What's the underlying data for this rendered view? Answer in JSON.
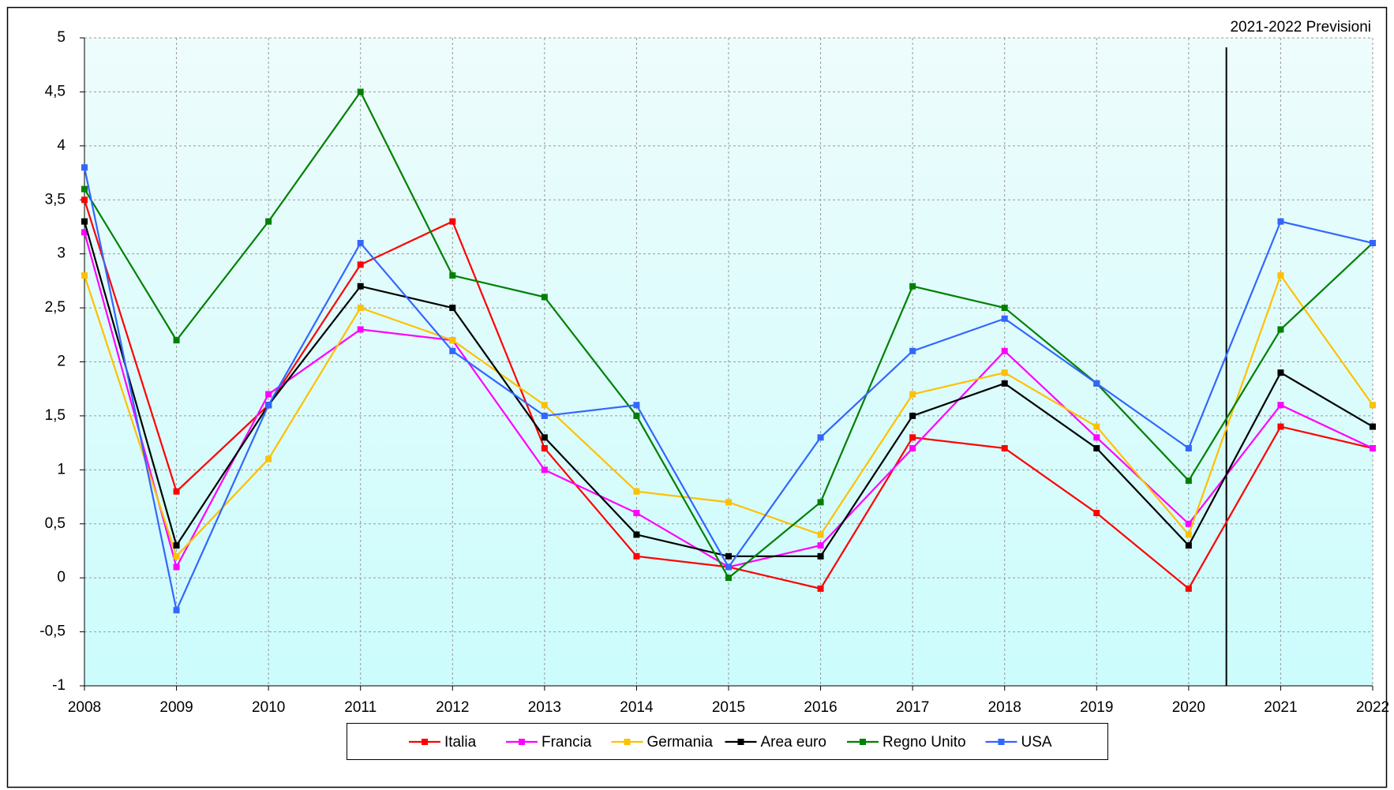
{
  "chart_data": {
    "type": "line",
    "annotation": "2021-2022 Previsioni",
    "categories": [
      "2008",
      "2009",
      "2010",
      "2011",
      "2012",
      "2013",
      "2014",
      "2015",
      "2016",
      "2017",
      "2018",
      "2019",
      "2020",
      "2021",
      "2022"
    ],
    "ylim": [
      -1,
      5
    ],
    "yticks": [
      -1,
      {
        "value": -0.5,
        "label": "-0,5"
      },
      0,
      {
        "value": 0.5,
        "label": "0,5"
      },
      1,
      {
        "value": 1.5,
        "label": "1,5"
      },
      2,
      {
        "value": 2.5,
        "label": "2,5"
      },
      3,
      {
        "value": 3.5,
        "label": "3,5"
      },
      4,
      {
        "value": 4.5,
        "label": "4,5"
      },
      5
    ],
    "grid": true,
    "legend": "bottom",
    "series": [
      {
        "name": "Italia",
        "color": "#ff0000",
        "values": [
          3.5,
          0.8,
          1.6,
          2.9,
          3.3,
          1.2,
          0.2,
          0.1,
          -0.1,
          1.3,
          1.2,
          0.6,
          -0.1,
          1.4,
          1.2
        ]
      },
      {
        "name": "Francia",
        "color": "#ff00ff",
        "values": [
          3.2,
          0.1,
          1.7,
          2.3,
          2.2,
          1.0,
          0.6,
          0.1,
          0.3,
          1.2,
          2.1,
          1.3,
          0.5,
          1.6,
          1.2
        ]
      },
      {
        "name": "Germania",
        "color": "#ffc000",
        "values": [
          2.8,
          0.2,
          1.1,
          2.5,
          2.2,
          1.6,
          0.8,
          0.7,
          0.4,
          1.7,
          1.9,
          1.4,
          0.4,
          2.8,
          1.6
        ]
      },
      {
        "name": "Area euro",
        "color": "#000000",
        "values": [
          3.3,
          0.3,
          1.6,
          2.7,
          2.5,
          1.3,
          0.4,
          0.2,
          0.2,
          1.5,
          1.8,
          1.2,
          0.3,
          1.9,
          1.4
        ]
      },
      {
        "name": "Regno Unito",
        "color": "#008000",
        "values": [
          3.6,
          2.2,
          3.3,
          4.5,
          2.8,
          2.6,
          1.5,
          0.0,
          0.7,
          2.7,
          2.5,
          1.8,
          0.9,
          2.3,
          3.1
        ]
      },
      {
        "name": "USA",
        "color": "#3366ff",
        "values": [
          3.8,
          -0.3,
          1.6,
          3.1,
          2.1,
          1.5,
          1.6,
          0.1,
          1.3,
          2.1,
          2.4,
          1.8,
          1.2,
          3.3,
          3.1
        ]
      }
    ]
  }
}
